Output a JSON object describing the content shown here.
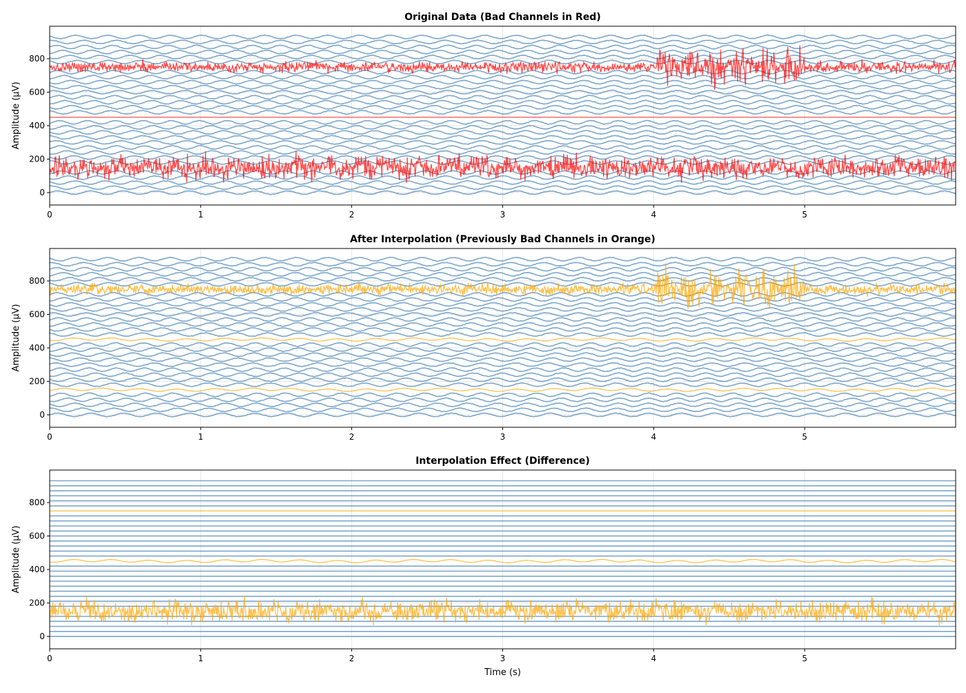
{
  "chart_data": [
    {
      "type": "line",
      "title": "Original Data (Bad Channels in Red)",
      "xlabel": "",
      "ylabel": "Amplitude (µV)",
      "xlim": [
        0,
        6
      ],
      "ylim": [
        -74,
        994
      ],
      "grid": true,
      "xticks": [
        "0",
        "1",
        "2",
        "3",
        "4",
        "5"
      ],
      "yticks": [
        "0",
        "200",
        "400",
        "600",
        "800"
      ],
      "channel_offsets_uv": [
        0,
        30,
        60,
        90,
        120,
        150,
        180,
        210,
        240,
        270,
        300,
        330,
        360,
        390,
        420,
        450,
        480,
        510,
        540,
        570,
        600,
        630,
        660,
        690,
        720,
        750,
        780,
        810,
        840,
        870,
        900,
        930
      ],
      "good_channel": {
        "color": "#4682b4",
        "signal": "sinusoid ~5 Hz, ±10 µV"
      },
      "bad_channels": [
        {
          "offset": 150,
          "color": "#ff0000",
          "signal": "noise ±100 µV"
        },
        {
          "offset": 450,
          "color": "#ff0000",
          "signal": "flat"
        },
        {
          "offset": 750,
          "color": "#ff0000",
          "signal": "noise ±50 µV, burst ±150 µV from 4 s to 5 s"
        }
      ]
    },
    {
      "type": "line",
      "title": "After Interpolation (Previously Bad Channels in Orange)",
      "xlabel": "",
      "ylabel": "Amplitude (µV)",
      "xlim": [
        0,
        6
      ],
      "ylim": [
        -74,
        994
      ],
      "grid": true,
      "xticks": [
        "0",
        "1",
        "2",
        "3",
        "4",
        "5"
      ],
      "yticks": [
        "0",
        "200",
        "400",
        "600",
        "800"
      ],
      "good_channel": {
        "color": "#4682b4",
        "signal": "sinusoid ~5 Hz, ±10 µV"
      },
      "interpolated_channels": [
        {
          "offset": 150,
          "color": "#ffa500",
          "signal": "small wave ±8 µV"
        },
        {
          "offset": 450,
          "color": "#ffa500",
          "signal": "small wave ±8 µV"
        },
        {
          "offset": 750,
          "color": "#ffa500",
          "signal": "noise ±50 µV, burst ±150 µV from 4 s to 5 s"
        }
      ]
    },
    {
      "type": "line",
      "title": "Interpolation Effect (Difference)",
      "xlabel": "Time (s)",
      "ylabel": "Amplitude (µV)",
      "xlim": [
        0,
        6
      ],
      "ylim": [
        -74,
        994
      ],
      "grid": true,
      "xticks": [
        "0",
        "1",
        "2",
        "3",
        "4",
        "5"
      ],
      "yticks": [
        "0",
        "200",
        "400",
        "600",
        "800"
      ],
      "good_channel": {
        "color": "#4682b4",
        "signal": "flat (zero difference)"
      },
      "interpolated_channels": [
        {
          "offset": 150,
          "color": "#ffa500",
          "signal": "noise ±100 µV"
        },
        {
          "offset": 450,
          "color": "#ffa500",
          "signal": "small wave ±10 µV"
        },
        {
          "offset": 750,
          "color": "#ffa500",
          "signal": "flat"
        }
      ]
    }
  ]
}
